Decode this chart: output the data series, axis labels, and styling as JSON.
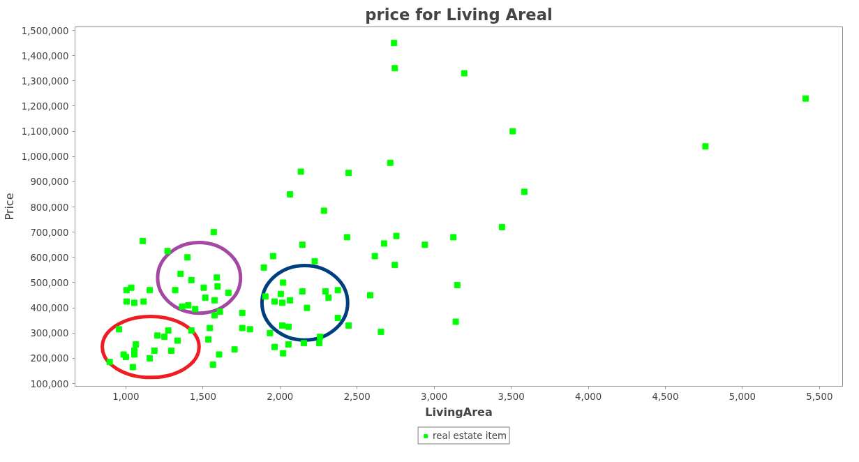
{
  "chart_data": {
    "type": "scatter",
    "title": "price for Living Areal",
    "xlabel": "LivingArea",
    "ylabel": "Price",
    "marker": "square",
    "grid": false,
    "legend": "bottom",
    "xlim": [
      670,
      5650
    ],
    "ylim": [
      89000,
      1514000
    ],
    "xticks": [
      {
        "value": 1000,
        "label": "1,000"
      },
      {
        "value": 1500,
        "label": "1,500"
      },
      {
        "value": 2000,
        "label": "2,000"
      },
      {
        "value": 2500,
        "label": "2,500"
      },
      {
        "value": 3000,
        "label": "3,000"
      },
      {
        "value": 3500,
        "label": "3,500"
      },
      {
        "value": 4000,
        "label": "4,000"
      },
      {
        "value": 4500,
        "label": "4,500"
      },
      {
        "value": 5000,
        "label": "5,000"
      },
      {
        "value": 5500,
        "label": "5,500"
      }
    ],
    "yticks": [
      {
        "value": 100000,
        "label": "100,000"
      },
      {
        "value": 200000,
        "label": "200,000"
      },
      {
        "value": 300000,
        "label": "300,000"
      },
      {
        "value": 400000,
        "label": "400,000"
      },
      {
        "value": 500000,
        "label": "500,000"
      },
      {
        "value": 600000,
        "label": "600,000"
      },
      {
        "value": 700000,
        "label": "700,000"
      },
      {
        "value": 800000,
        "label": "800,000"
      },
      {
        "value": 900000,
        "label": "900,000"
      },
      {
        "value": 1000000,
        "label": "1,000,000"
      },
      {
        "value": 1100000,
        "label": "1,100,000"
      },
      {
        "value": 1200000,
        "label": "1,200,000"
      },
      {
        "value": 1300000,
        "label": "1,300,000"
      },
      {
        "value": 1400000,
        "label": "1,400,000"
      },
      {
        "value": 1500000,
        "label": "1,500,000"
      }
    ],
    "series": [
      {
        "name": "real estate item",
        "color": "#00ff00",
        "x": [
          1570,
          1110,
          1270,
          1400,
          1355,
          1425,
          1590,
          1505,
          1595,
          1005,
          1035,
          1155,
          1320,
          1665,
          1515,
          1575,
          1005,
          1055,
          1115,
          1365,
          1405,
          1450,
          1575,
          1610,
          1755,
          955,
          1545,
          1755,
          1805,
          1275,
          1205,
          1250,
          1425,
          1335,
          1535,
          1065,
          1055,
          1055,
          1185,
          1295,
          985,
          1000,
          1155,
          1605,
          1705,
          895,
          1045,
          1565,
          1935,
          1965,
          2715,
          2135,
          2445,
          2065,
          2285,
          2435,
          2755,
          2675,
          2145,
          1955,
          2615,
          2225,
          2745,
          1895,
          2020,
          2145,
          2295,
          2375,
          2005,
          1905,
          2315,
          1965,
          2015,
          2065,
          2175,
          2585,
          2375,
          2015,
          2055,
          2445,
          2655,
          2260,
          2055,
          2155,
          2255,
          2020,
          2740,
          2745,
          3195,
          5410,
          3510,
          4760,
          3585,
          3440,
          2940,
          3125,
          3150,
          3140
        ],
        "values": [
          700000,
          665000,
          625000,
          600000,
          535000,
          510000,
          520000,
          480000,
          485000,
          470000,
          480000,
          470000,
          470000,
          460000,
          440000,
          430000,
          425000,
          420000,
          425000,
          405000,
          410000,
          395000,
          370000,
          385000,
          380000,
          315000,
          320000,
          320000,
          315000,
          310000,
          290000,
          285000,
          310000,
          270000,
          275000,
          255000,
          230000,
          215000,
          230000,
          230000,
          215000,
          205000,
          200000,
          215000,
          235000,
          185000,
          165000,
          175000,
          300000,
          245000,
          975000,
          940000,
          935000,
          850000,
          785000,
          680000,
          685000,
          655000,
          650000,
          605000,
          605000,
          585000,
          570000,
          560000,
          500000,
          465000,
          465000,
          470000,
          455000,
          445000,
          440000,
          425000,
          420000,
          430000,
          400000,
          450000,
          360000,
          330000,
          325000,
          330000,
          305000,
          285000,
          255000,
          260000,
          260000,
          220000,
          1450000,
          1350000,
          1330000,
          1230000,
          1100000,
          1040000,
          860000,
          720000,
          650000,
          680000,
          490000,
          345000
        ]
      }
    ]
  }
}
